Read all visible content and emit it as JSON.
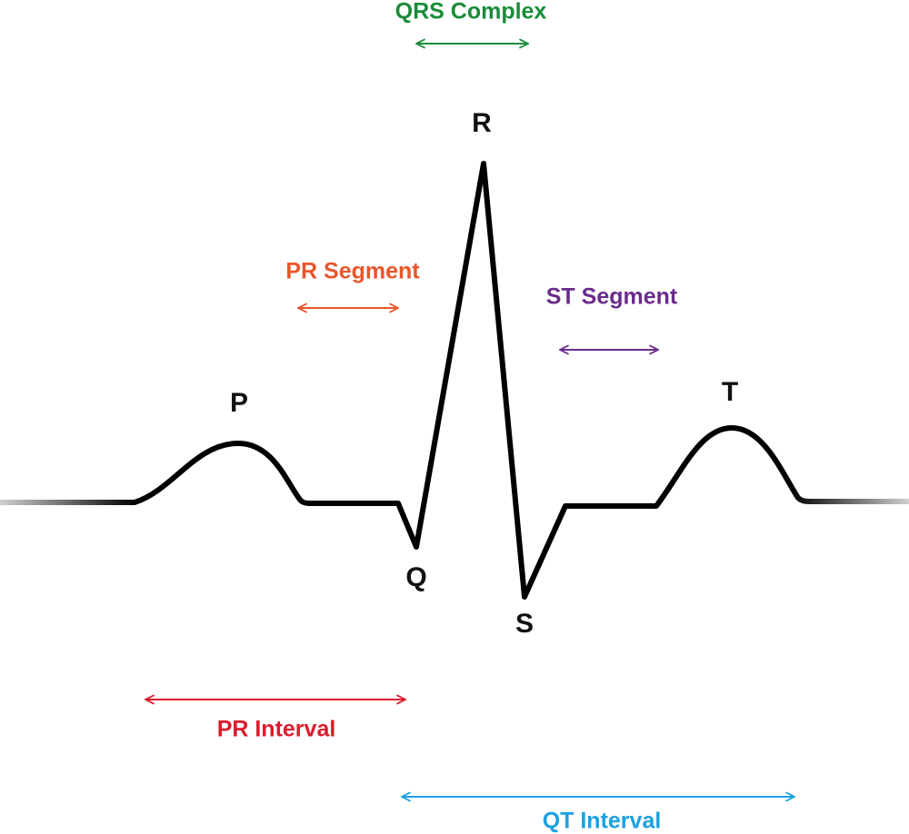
{
  "waves": [
    "P",
    "Q",
    "R",
    "S",
    "T"
  ],
  "intervals": [
    "QRS Complex",
    "PR Segment",
    "ST Segment",
    "PR Interval",
    "QT Interval"
  ]
}
